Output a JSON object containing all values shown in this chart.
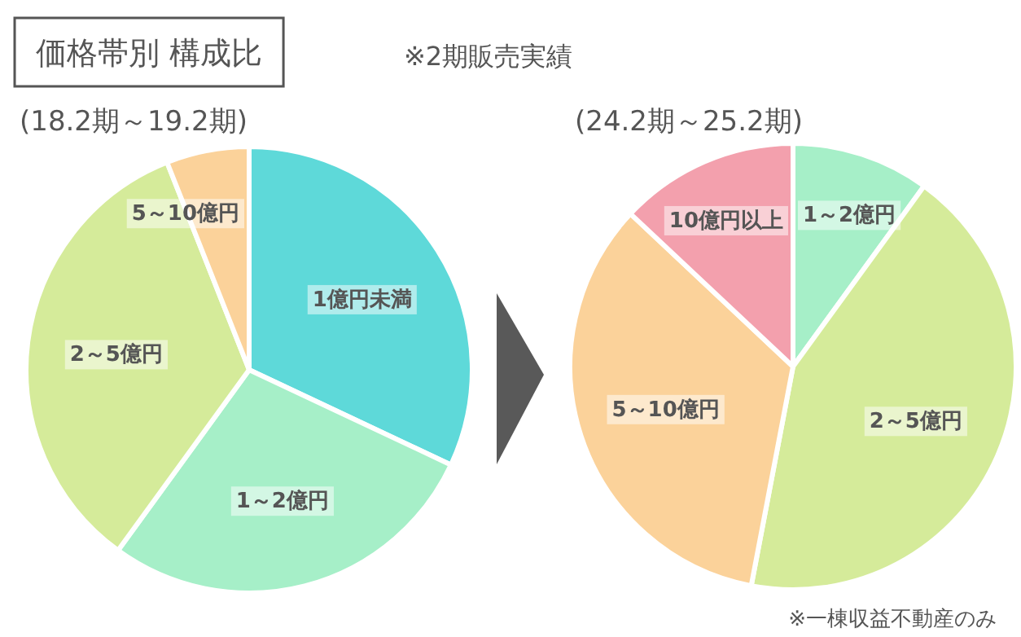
{
  "chart_data": [
    {
      "type": "pie",
      "title": "価格帯別 構成比",
      "subtitle": "(18.2期～19.2期)",
      "annotations": [
        "※2期販売実績"
      ],
      "categories": [
        "1億円未満",
        "1～2億円",
        "2～5億円",
        "5～10億円"
      ],
      "values": [
        32,
        28,
        34,
        6
      ],
      "colors": [
        "#5ed9d9",
        "#a6efc8",
        "#d5eb9a",
        "#fbd29a"
      ]
    },
    {
      "type": "pie",
      "title": "(24.2期～25.2期)",
      "annotations": [
        "※一棟収益不動産のみ"
      ],
      "categories": [
        "1～2億円",
        "2～5億円",
        "5～10億円",
        "10億円以上"
      ],
      "values": [
        10,
        43,
        34,
        13
      ],
      "colors": [
        "#a6efc8",
        "#d5eb9a",
        "#fbd29a",
        "#f3a0ad"
      ]
    }
  ]
}
